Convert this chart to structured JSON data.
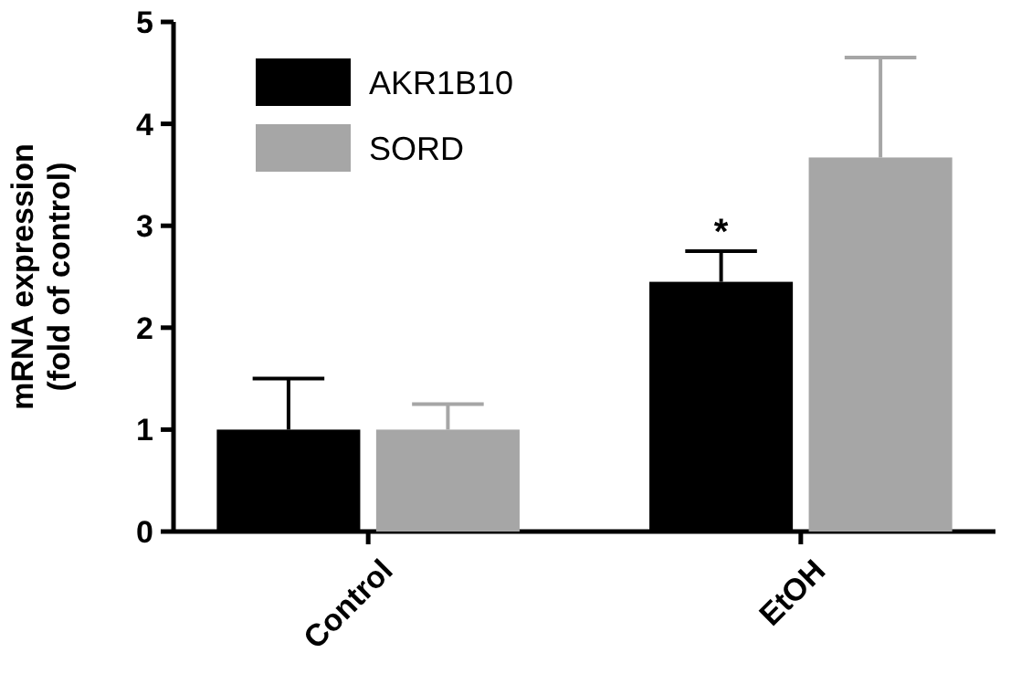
{
  "chart_data": {
    "type": "bar",
    "ylabel": "mRNA expression\n(fold of control)",
    "categories": [
      "Control",
      "EtOH"
    ],
    "series": [
      {
        "name": "AKR1B10",
        "color": "#000000",
        "values": [
          1.0,
          2.45
        ],
        "errors": [
          [
            1.0,
            1.5
          ],
          [
            2.45,
            2.75
          ]
        ]
      },
      {
        "name": "SORD",
        "color": "#a6a6a6",
        "values": [
          1.0,
          3.67
        ],
        "errors": [
          [
            1.0,
            1.25
          ],
          [
            3.67,
            4.65
          ]
        ]
      }
    ],
    "ylim": [
      0,
      5
    ],
    "yticks": [
      0,
      1,
      2,
      3,
      4,
      5
    ],
    "legend": "top left",
    "grid": false,
    "annotations": [
      {
        "text": "*",
        "x": "EtOH",
        "y": 2.75
      }
    ]
  }
}
